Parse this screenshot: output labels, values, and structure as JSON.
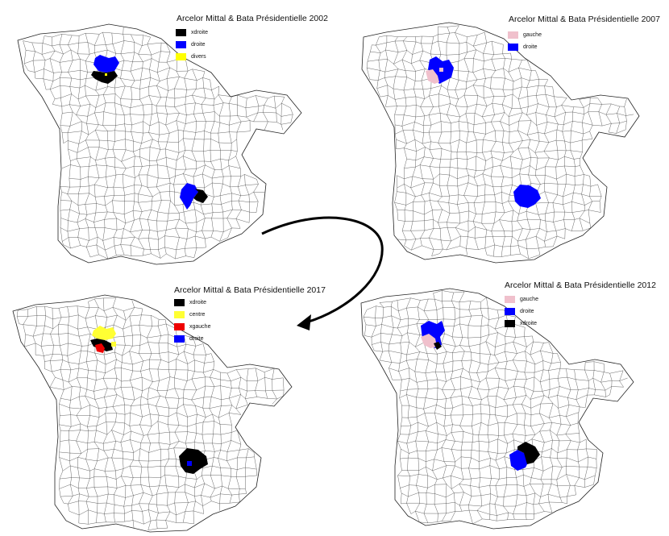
{
  "panels": [
    {
      "id": "p2002",
      "title": "Arcelor Mittal & Bata Présidentielle 2002",
      "legend": [
        {
          "label": "xdroite",
          "color": "#000000"
        },
        {
          "label": "droite",
          "color": "#0000ff"
        },
        {
          "label": "divers",
          "color": "#ffff00"
        }
      ]
    },
    {
      "id": "p2007",
      "title": "Arcelor Mittal & Bata Présidentielle 2007",
      "legend": [
        {
          "label": "gauche",
          "color": "#f0c0cc"
        },
        {
          "label": "droite",
          "color": "#0000ff"
        }
      ]
    },
    {
      "id": "p2017",
      "title": "Arcelor Mittal & Bata Présidentielle 2017",
      "legend": [
        {
          "label": "xdroite",
          "color": "#000000"
        },
        {
          "label": "centre",
          "color": "#ffff33"
        },
        {
          "label": "xgauche",
          "color": "#ee0000"
        },
        {
          "label": "droite",
          "color": "#0000ff"
        }
      ]
    },
    {
      "id": "p2012",
      "title": "Arcelor Mittal & Bata Présidentielle 2012",
      "legend": [
        {
          "label": "gauche",
          "color": "#f0c0cc"
        },
        {
          "label": "droite",
          "color": "#0000ff"
        },
        {
          "label": "xdroite",
          "color": "#000000"
        }
      ]
    }
  ],
  "colors": {
    "map_stroke": "#222222",
    "arrow": "#000000"
  }
}
